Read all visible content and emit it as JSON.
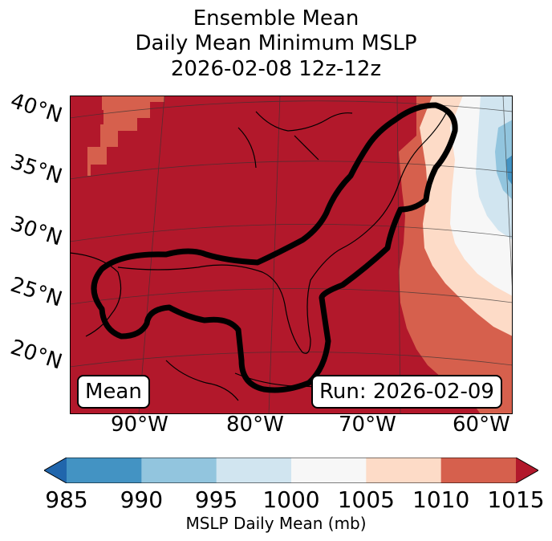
{
  "title": {
    "line1": "Ensemble Mean",
    "line2": "Daily Mean Minimum MSLP",
    "line3": "2026-02-08 12z-12z"
  },
  "map": {
    "lat_labels": [
      "40°N",
      "35°N",
      "30°N",
      "25°N",
      "20°N"
    ],
    "lon_labels": [
      "90°W",
      "80°W",
      "70°W",
      "60°W"
    ],
    "badge_left": "Mean",
    "badge_right": "Run: 2026-02-09",
    "background_value_color": "#b2182b",
    "contour_color": "#000000"
  },
  "colorbar": {
    "label": "MSLP Daily Mean (mb)",
    "ticks": [
      "985",
      "990",
      "995",
      "1000",
      "1005",
      "1010",
      "1015"
    ],
    "colors": [
      "#2166ac",
      "#4393c3",
      "#92c5de",
      "#d1e5f0",
      "#f7f7f7",
      "#fddbc7",
      "#d6604d",
      "#b2182b"
    ]
  },
  "chart_data": {
    "type": "heatmap",
    "title": "Ensemble Mean Daily Mean Minimum MSLP 2026-02-08 12z-12z",
    "colorbar_label": "MSLP Daily Mean (mb)",
    "levels": [
      985,
      990,
      995,
      1000,
      1005,
      1010,
      1015
    ],
    "extend": "both",
    "lat_ticks": [
      40,
      35,
      30,
      25,
      20
    ],
    "lon_ticks": [
      -90,
      -80,
      -70,
      -60
    ],
    "dominant_range_mb": "over 1015 across most of the domain (Gulf of Mexico, eastern US, Caribbean)",
    "notes": "Lower pressure (985-1005 mb) over the North Atlantic in the northeast corner; thick black outline encloses the Gulf coast, Florida and the US East Coast."
  }
}
